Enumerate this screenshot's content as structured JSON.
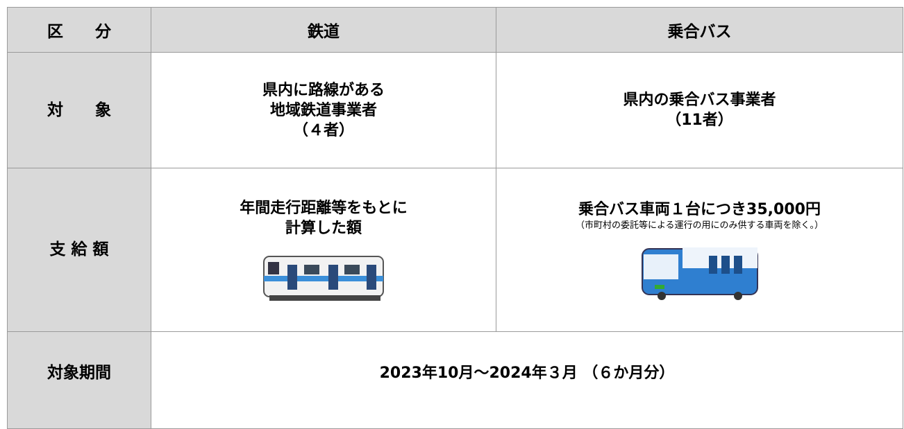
{
  "table": {
    "header": [
      "区　　分",
      "鉄道",
      "乗合バス"
    ],
    "rows": [
      {
        "label": "対　　象",
        "cells": [
          [
            "県内に路線がある",
            "地域鉄道事業者",
            "（４者）"
          ],
          [
            "県内の乗合バス事業者",
            "（11者）"
          ]
        ]
      },
      {
        "label": "支 給 額",
        "cells": [
          [
            "年間走行距離等をもとに",
            "計算した額"
          ],
          [
            "乗合バス車両１台につき35,000円"
          ]
        ],
        "note": "（市町村の委託等による運行の用にのみ供する車両を除く。）"
      },
      {
        "label": "対象期間",
        "value": "2023年10月～2024年３月 （６か月分）"
      }
    ]
  }
}
